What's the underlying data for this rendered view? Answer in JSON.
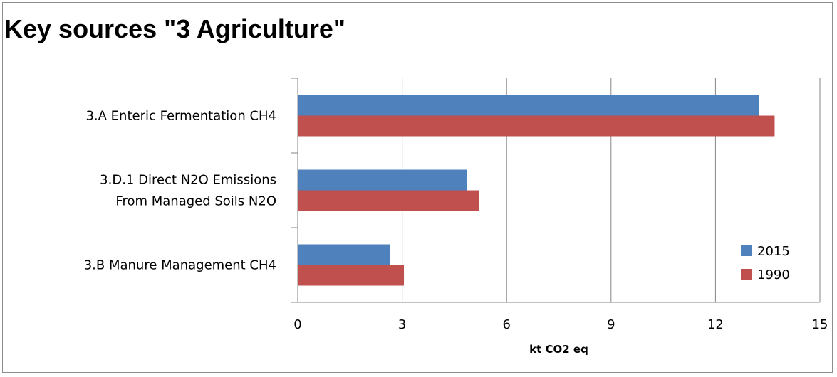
{
  "chart_data": {
    "type": "bar",
    "orientation": "horizontal",
    "title": "Key sources \"3 Agriculture\"",
    "xlabel": "kt CO2 eq",
    "ylabel": "",
    "xlim": [
      0,
      15
    ],
    "xticks": [
      0,
      3,
      6,
      9,
      12,
      15
    ],
    "xtick_labels": [
      "0",
      "3",
      "6",
      "9",
      "12",
      "15"
    ],
    "grid": true,
    "legend_position": "right",
    "categories": [
      [
        "3.A Enteric Fermentation CH4"
      ],
      [
        "3.D.1 Direct N2O Emissions",
        "From Managed Soils N2O"
      ],
      [
        "3.B Manure Management CH4"
      ]
    ],
    "series": [
      {
        "name": "2015",
        "color": "#4f81bd",
        "values": [
          13.25,
          4.85,
          2.65
        ]
      },
      {
        "name": "1990",
        "color": "#c0504d",
        "values": [
          13.7,
          5.2,
          3.05
        ]
      }
    ]
  }
}
